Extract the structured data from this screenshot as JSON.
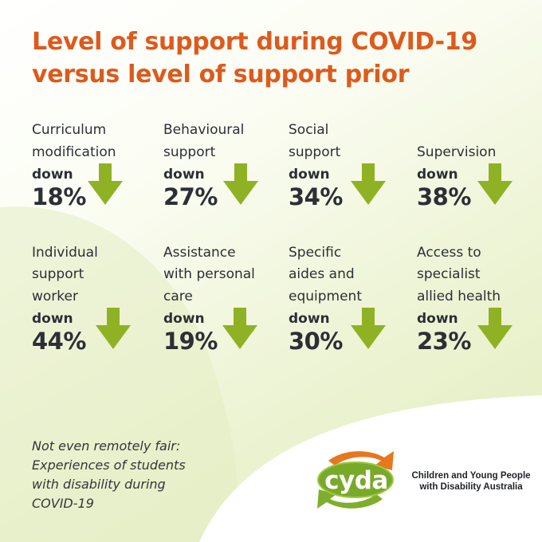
{
  "title": {
    "line1": "Level of support during COVID-19",
    "line2": "versus level of support prior"
  },
  "stats": [
    {
      "label": [
        "Curriculum",
        "modification"
      ],
      "direction": "down",
      "value": "18%"
    },
    {
      "label": [
        "Behavioural",
        "support"
      ],
      "direction": "down",
      "value": "27%"
    },
    {
      "label": [
        "Social",
        "support"
      ],
      "direction": "down",
      "value": "34%"
    },
    {
      "label": [
        "Supervision"
      ],
      "direction": "down",
      "value": "38%"
    },
    {
      "label": [
        "Individual",
        "support",
        "worker"
      ],
      "direction": "down",
      "value": "44%"
    },
    {
      "label": [
        "Assistance",
        "with personal",
        "care"
      ],
      "direction": "down",
      "value": "19%"
    },
    {
      "label": [
        "Specific",
        "aides and",
        "equipment"
      ],
      "direction": "down",
      "value": "30%"
    },
    {
      "label": [
        "Access to",
        "specialist",
        "allied health"
      ],
      "direction": "down",
      "value": "23%"
    }
  ],
  "booklet": {
    "lines": [
      "Not even remotely fair:",
      "Experiences of students",
      "with disability during",
      "COVID-19"
    ]
  },
  "logo": {
    "word": "cyda",
    "org_lines": [
      "Children and Young People",
      "with Disability Australia"
    ]
  },
  "icons": {
    "stat_arrow": "down-arrow-icon"
  },
  "colors": {
    "title": "#dd5a1c",
    "text": "#2c2f35",
    "arrow": "#8fb225",
    "logo_orange": "#e8761e",
    "logo_green": "#7fae2e"
  }
}
